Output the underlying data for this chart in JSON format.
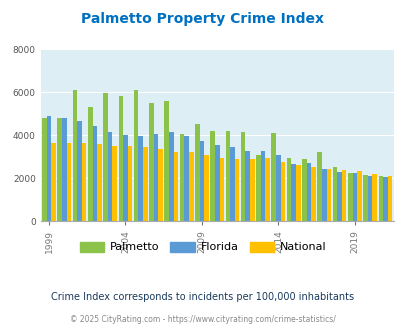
{
  "title": "Palmetto Property Crime Index",
  "years": [
    1999,
    2000,
    2001,
    2002,
    2003,
    2004,
    2005,
    2006,
    2007,
    2008,
    2009,
    2010,
    2011,
    2012,
    2013,
    2014,
    2015,
    2016,
    2017,
    2018,
    2019,
    2020,
    2021
  ],
  "palmetto": [
    4800,
    4800,
    6100,
    5300,
    5950,
    5850,
    6100,
    5500,
    5600,
    4050,
    4550,
    4200,
    4200,
    4150,
    3100,
    4100,
    2950,
    2900,
    3200,
    2500,
    2250,
    2150,
    2100
  ],
  "florida": [
    4900,
    4800,
    4650,
    4450,
    4150,
    4000,
    3950,
    4050,
    4150,
    3950,
    3750,
    3550,
    3450,
    3250,
    3250,
    3100,
    2650,
    2700,
    2450,
    2300,
    2250,
    2100,
    2050
  ],
  "national": [
    3650,
    3650,
    3650,
    3600,
    3500,
    3500,
    3450,
    3350,
    3200,
    3200,
    3100,
    2950,
    2900,
    2900,
    2950,
    2750,
    2600,
    2500,
    2450,
    2400,
    2350,
    2200,
    2100
  ],
  "palmetto_color": "#8bc34a",
  "florida_color": "#5b9bd5",
  "national_color": "#ffc000",
  "bg_color": "#ddeef5",
  "title_color": "#0070c0",
  "ylabel_max": 8000,
  "yticks": [
    0,
    2000,
    4000,
    6000,
    8000
  ],
  "xtick_years": [
    1999,
    2004,
    2009,
    2014,
    2019
  ],
  "subtitle": "Crime Index corresponds to incidents per 100,000 inhabitants",
  "footer": "© 2025 CityRating.com - https://www.cityrating.com/crime-statistics/",
  "legend_labels": [
    "Palmetto",
    "Florida",
    "National"
  ]
}
